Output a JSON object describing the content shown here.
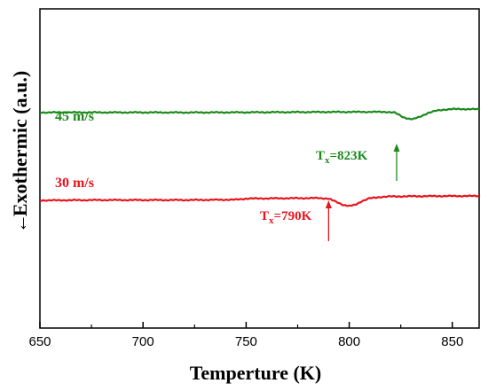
{
  "chart_data": {
    "type": "line",
    "xlabel": "Temperture (K)",
    "ylabel": "Exothermic (a.u.)",
    "ylabel_arrow": "←",
    "xlim": [
      650,
      863
    ],
    "xticks": [
      650,
      700,
      750,
      800,
      850
    ],
    "yticks_shown": false,
    "series": [
      {
        "name": "45 m/s",
        "color": "#1a8a1a",
        "x": [
          650,
          680,
          700,
          720,
          750,
          770,
          790,
          810,
          818,
          822,
          826,
          829,
          831,
          834,
          838,
          842,
          846,
          850,
          855,
          860,
          863
        ],
        "y": [
          1.56,
          1.56,
          1.56,
          1.555,
          1.565,
          1.575,
          1.585,
          1.59,
          1.59,
          1.55,
          1.3,
          1.2,
          1.18,
          1.3,
          1.52,
          1.65,
          1.72,
          1.75,
          1.75,
          1.74,
          1.74
        ]
      },
      {
        "name": "30 m/s",
        "color": "#e8141c",
        "x": [
          650,
          680,
          700,
          720,
          745,
          750,
          770,
          785,
          790,
          793,
          797,
          800,
          803,
          806,
          810,
          816,
          820,
          840,
          863
        ],
        "y": [
          0.0,
          0.02,
          0.02,
          0.02,
          0.04,
          0.1,
          0.12,
          0.13,
          0.1,
          -0.05,
          -0.25,
          -0.32,
          -0.25,
          -0.05,
          0.12,
          0.2,
          0.22,
          0.24,
          0.25
        ]
      }
    ],
    "annotations": [
      {
        "series": "45 m/s",
        "text_main": "T",
        "text_sub": "x",
        "text_value": "=823K",
        "x": 823,
        "color": "#1a8a1a"
      },
      {
        "series": "30 m/s",
        "text_main": "T",
        "text_sub": "x",
        "text_value": "=790K",
        "x": 790,
        "color": "#e8141c"
      }
    ]
  }
}
